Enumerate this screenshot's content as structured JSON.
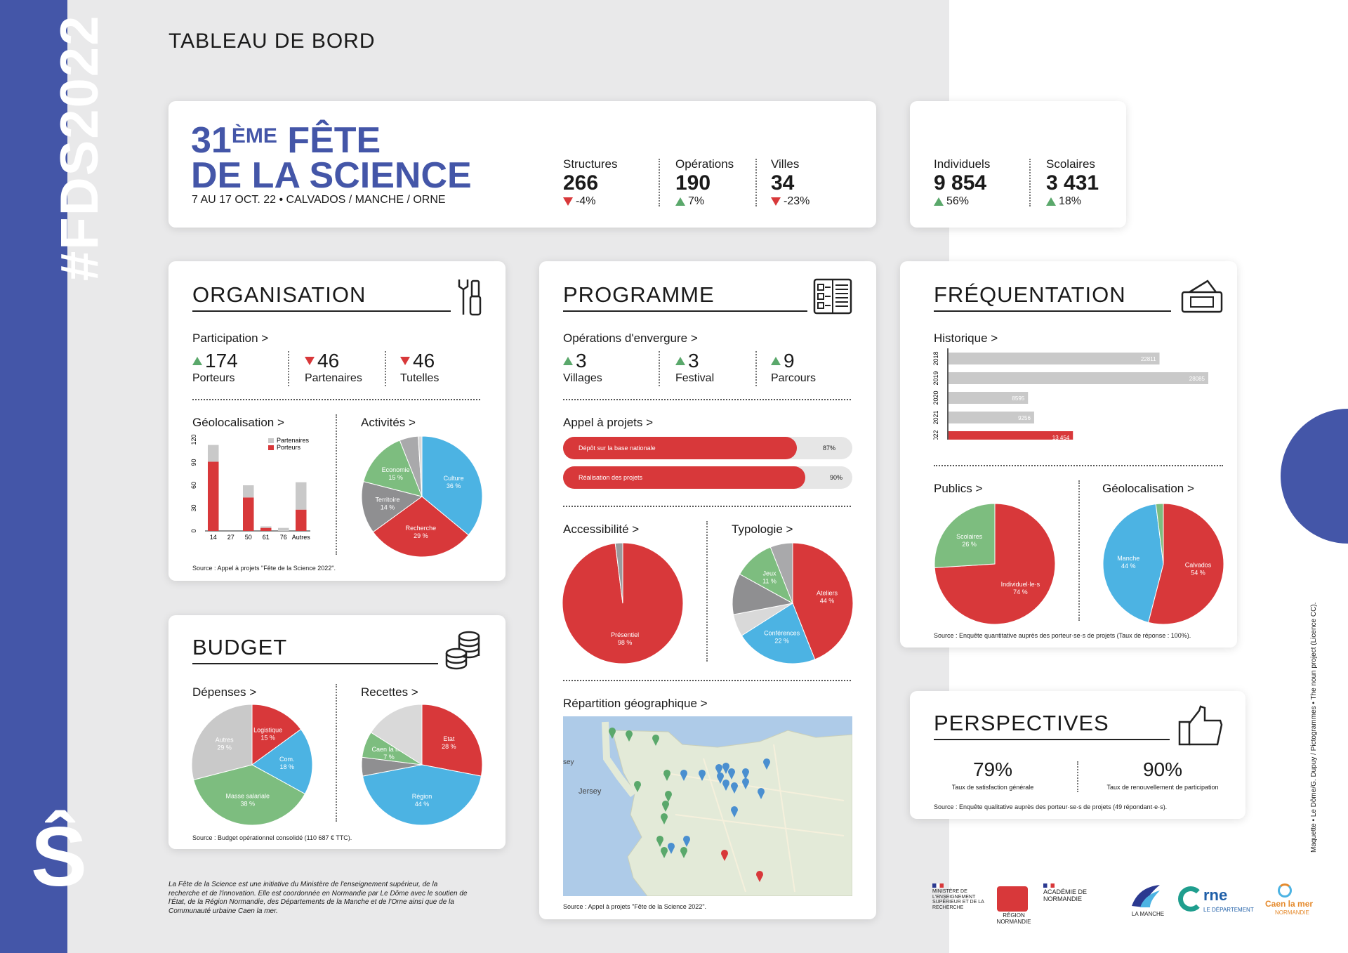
{
  "sidebar": {
    "hashtag": "#FDS2022",
    "logo": "Ŝ"
  },
  "header": {
    "title": "TABLEAU DE BORD"
  },
  "event": {
    "edition": "31",
    "edition_sup": "ÈME",
    "name_line1": "FÊTE",
    "name_line2": "DE LA SCIENCE",
    "dates": "7 AU 17 OCT. 22 • CALVADOS / MANCHE / ORNE"
  },
  "stats": [
    {
      "label": "Structures",
      "value": "266",
      "change": "-4%",
      "dir": "down"
    },
    {
      "label": "Opérations",
      "value": "190",
      "change": "7%",
      "dir": "up"
    },
    {
      "label": "Villes",
      "value": "34",
      "change": "-23%",
      "dir": "down"
    }
  ],
  "visitors": [
    {
      "label": "Individuels",
      "value": "9 854",
      "change": "56%",
      "dir": "up"
    },
    {
      "label": "Scolaires",
      "value": "3 431",
      "change": "18%",
      "dir": "up"
    }
  ],
  "organisation": {
    "title": "ORGANISATION",
    "participation_label": "Participation >",
    "items": [
      {
        "value": "174",
        "label": "Porteurs",
        "dir": "up"
      },
      {
        "value": "46",
        "label": "Partenaires",
        "dir": "down"
      },
      {
        "value": "46",
        "label": "Tutelles",
        "dir": "down"
      }
    ],
    "geo_label": "Géolocalisation >",
    "activities_label": "Activités >",
    "source": "Source : Appel à projets \"Fête de la Science 2022\"."
  },
  "budget": {
    "title": "BUDGET",
    "expenses_label": "Dépenses >",
    "revenue_label": "Recettes >",
    "source": "Source : Budget opérationnel consolidé (110 687 € TTC)."
  },
  "programme": {
    "title": "PROGRAMME",
    "major_label": "Opérations d'envergure >",
    "items": [
      {
        "value": "3",
        "label": "Villages",
        "dir": "up"
      },
      {
        "value": "3",
        "label": "Festival",
        "dir": "up"
      },
      {
        "value": "9",
        "label": "Parcours",
        "dir": "up"
      }
    ],
    "call_label": "Appel à projets >",
    "bars": [
      {
        "label": "Dépôt sur la base nationale",
        "value": 87,
        "display": "87%"
      },
      {
        "label": "Réalisation des projets",
        "value": 90,
        "display": "90%"
      }
    ],
    "access_label": "Accessibilité >",
    "typology_label": "Typologie >",
    "map_label": "Répartition géographique >",
    "map_places": {
      "sey": "sey",
      "jersey": "Jersey"
    },
    "source": "Source : Appel à projets \"Fête de la Science 2022\"."
  },
  "frequentation": {
    "title": "FRÉQUENTATION",
    "history_label": "Historique >",
    "publics_label": "Publics >",
    "geo_label": "Géolocalisation >",
    "source": "Source : Enquête quantitative auprès des porteur·se·s de projets (Taux de réponse : 100%)."
  },
  "perspectives": {
    "title": "PERSPECTIVES",
    "items": [
      {
        "value": "79%",
        "label": "Taux de satisfaction générale"
      },
      {
        "value": "90%",
        "label": "Taux de renouvellement de participation"
      }
    ],
    "source": "Source : Enquête qualitative auprès des porteur·se·s de projets (49 répondant·e·s)."
  },
  "footer": {
    "note": "La Fête de la Science est une initiative du Ministère de l'enseignement supérieur, de la recherche et de l'innovation. Elle est coordonnée en Normandie par Le Dôme avec le soutien de l'État, de la Région Normandie, des Départements de la Manche et de l'Orne ainsi que de la Communauté urbaine Caen la mer.",
    "credits": "Maquette • Le Dôme/G. Dupuy / Pictogrammes • The noun project (Licence CC).",
    "logos": {
      "ministere": "MINISTÈRE DE L'ENSEIGNEMENT SUPÉRIEUR ET DE LA RECHERCHE",
      "region": "RÉGION NORMANDIE",
      "academie": "ACADÉMIE DE NORMANDIE",
      "manche": "LA MANCHE",
      "orne": "rne",
      "orne_sub": "LE DÉPARTEMENT",
      "caen": "Caen la mer",
      "caen_sub": "NORMANDIE"
    }
  },
  "chart_data": [
    {
      "id": "geolocalisation-operations",
      "type": "bar",
      "stacked": true,
      "categories": [
        "14",
        "27",
        "50",
        "61",
        "76",
        "Autres"
      ],
      "series": [
        {
          "name": "Porteurs",
          "values": [
            91,
            0,
            44,
            4,
            0,
            28
          ],
          "color": "#d8383a"
        },
        {
          "name": "Partenaires",
          "values": [
            22,
            0,
            16,
            2,
            4,
            36
          ],
          "color": "#c9c9c9"
        }
      ],
      "yticks": [
        0,
        30,
        60,
        90,
        120
      ],
      "ylim": [
        0,
        120
      ],
      "legend": "top-right"
    },
    {
      "id": "activites",
      "type": "pie",
      "slices": [
        {
          "label": "Culture",
          "display": "36 %",
          "value": 36,
          "color": "#4cb3e3"
        },
        {
          "label": "Recherche",
          "display": "29 %",
          "value": 29,
          "color": "#d8383a"
        },
        {
          "label": "Territoire",
          "display": "14 %",
          "value": 14,
          "color": "#8f8f91"
        },
        {
          "label": "Economie",
          "display": "15 %",
          "value": 15,
          "color": "#7dbd7f"
        },
        {
          "label": "",
          "display": "",
          "value": 5,
          "color": "#a9a9ab"
        },
        {
          "label": "",
          "display": "",
          "value": 1,
          "color": "#d9d9d9"
        }
      ]
    },
    {
      "id": "depenses",
      "type": "pie",
      "slices": [
        {
          "label": "Logistique",
          "display": "15 %",
          "value": 15,
          "color": "#d8383a"
        },
        {
          "label": "Com.",
          "display": "18 %",
          "value": 18,
          "color": "#4cb3e3"
        },
        {
          "label": "Masse salariale",
          "display": "38 %",
          "value": 38,
          "color": "#7dbd7f"
        },
        {
          "label": "Autres",
          "display": "29 %",
          "value": 29,
          "color": "#c9c9c9"
        }
      ]
    },
    {
      "id": "recettes",
      "type": "pie",
      "slices": [
        {
          "label": "Etat",
          "display": "28 %",
          "value": 28,
          "color": "#d8383a"
        },
        {
          "label": "Région",
          "display": "44 %",
          "value": 44,
          "color": "#4cb3e3"
        },
        {
          "label": "",
          "display": "",
          "value": 5,
          "color": "#8f8f91"
        },
        {
          "label": "Caen la mer",
          "display": "7 %",
          "value": 7,
          "color": "#7dbd7f"
        },
        {
          "label": "",
          "display": "",
          "value": 16,
          "color": "#d9d9d9"
        }
      ]
    },
    {
      "id": "accessibilite",
      "type": "pie",
      "slices": [
        {
          "label": "Présentiel",
          "display": "98 %",
          "value": 98,
          "color": "#d8383a"
        },
        {
          "label": "",
          "display": "",
          "value": 2,
          "color": "#9a9a9c"
        }
      ]
    },
    {
      "id": "typologie",
      "type": "pie",
      "slices": [
        {
          "label": "Ateliers",
          "display": "44 %",
          "value": 44,
          "color": "#d8383a"
        },
        {
          "label": "Conférences",
          "display": "22 %",
          "value": 22,
          "color": "#4cb3e3"
        },
        {
          "label": "",
          "display": "",
          "value": 6,
          "color": "#d9d9d9"
        },
        {
          "label": "",
          "display": "",
          "value": 11,
          "color": "#8f8f91"
        },
        {
          "label": "Jeux",
          "display": "11 %",
          "value": 11,
          "color": "#7dbd7f"
        },
        {
          "label": "",
          "display": "",
          "value": 6,
          "color": "#a9a9ab"
        }
      ]
    },
    {
      "id": "historique",
      "type": "bar",
      "orientation": "horizontal",
      "categories": [
        "2018",
        "2019",
        "2020",
        "2021",
        "2022"
      ],
      "values": [
        22811,
        28085,
        8595,
        9256,
        13454
      ],
      "display": [
        "22811",
        "28085",
        "8595",
        "9256",
        "13 454"
      ],
      "colors": [
        "#c9c9c9",
        "#c9c9c9",
        "#c9c9c9",
        "#c9c9c9",
        "#d8383a"
      ]
    },
    {
      "id": "publics",
      "type": "pie",
      "slices": [
        {
          "label": "Individuel·le·s",
          "display": "74 %",
          "value": 74,
          "color": "#d8383a"
        },
        {
          "label": "Scolaires",
          "display": "26 %",
          "value": 26,
          "color": "#7dbd7f"
        }
      ]
    },
    {
      "id": "geolocalisation-frequentation",
      "type": "pie",
      "slices": [
        {
          "label": "Calvados",
          "display": "54 %",
          "value": 54,
          "color": "#d8383a"
        },
        {
          "label": "Manche",
          "display": "44 %",
          "value": 44,
          "color": "#4cb3e3"
        },
        {
          "label": "",
          "display": "",
          "value": 2,
          "color": "#7dbd7f"
        }
      ]
    }
  ]
}
